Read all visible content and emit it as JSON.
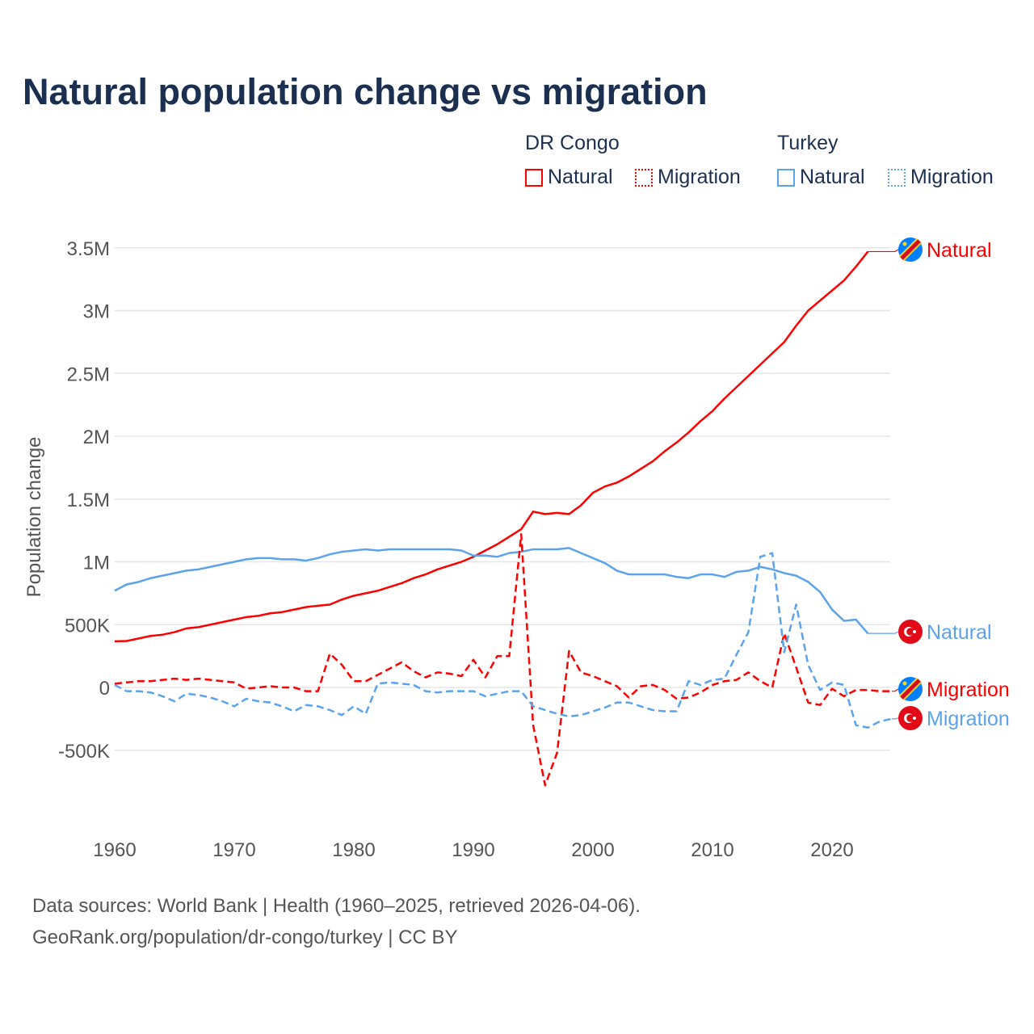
{
  "chart_data": {
    "type": "line",
    "title": "Natural population change vs migration",
    "xlabel": "",
    "ylabel": "Population change",
    "xlim": [
      1960,
      2025
    ],
    "ylim": [
      -1000000,
      3500000
    ],
    "x_ticks": [
      "1960",
      "1970",
      "1980",
      "1990",
      "2000",
      "2010",
      "2020"
    ],
    "y_ticks": [
      {
        "v": 3500000,
        "l": "3.5M"
      },
      {
        "v": 3000000,
        "l": "3M"
      },
      {
        "v": 2500000,
        "l": "2.5M"
      },
      {
        "v": 2000000,
        "l": "2M"
      },
      {
        "v": 1500000,
        "l": "1.5M"
      },
      {
        "v": 1000000,
        "l": "1M"
      },
      {
        "v": 500000,
        "l": "500K"
      },
      {
        "v": 0,
        "l": "0"
      },
      {
        "v": -500000,
        "l": "-500K"
      }
    ],
    "grid": true,
    "legend": {
      "groups": [
        {
          "name": "DR Congo",
          "items": [
            "Natural",
            "Migration"
          ]
        },
        {
          "name": "Turkey",
          "items": [
            "Natural",
            "Migration"
          ]
        }
      ],
      "placement": "top-right"
    },
    "colors": {
      "dr_congo": "#ff0000",
      "turkey": "#5ba3ea"
    },
    "series": [
      {
        "name": "DR Congo Natural",
        "country": "DR Congo",
        "kind": "Natural",
        "dashed": false,
        "color": "#ff0000",
        "label": "Natural",
        "start": 1960,
        "values": [
          0.367,
          0.37,
          0.39,
          0.41,
          0.42,
          0.44,
          0.47,
          0.48,
          0.5,
          0.52,
          0.54,
          0.56,
          0.57,
          0.59,
          0.6,
          0.62,
          0.64,
          0.65,
          0.66,
          0.7,
          0.73,
          0.75,
          0.77,
          0.8,
          0.83,
          0.87,
          0.9,
          0.94,
          0.97,
          1.0,
          1.04,
          1.09,
          1.14,
          1.2,
          1.26,
          1.4,
          1.38,
          1.39,
          1.38,
          1.45,
          1.55,
          1.6,
          1.63,
          1.68,
          1.74,
          1.8,
          1.88,
          1.95,
          2.03,
          2.12,
          2.2,
          2.3,
          2.39,
          2.48,
          2.57,
          2.66,
          2.75,
          2.88,
          3.0,
          3.08,
          3.16,
          3.24,
          3.35,
          3.47
        ]
      },
      {
        "name": "Turkey Natural",
        "country": "Turkey",
        "kind": "Natural",
        "dashed": false,
        "color": "#5ba3ea",
        "label": "Natural",
        "start": 1960,
        "values": [
          0.77,
          0.82,
          0.84,
          0.87,
          0.89,
          0.91,
          0.93,
          0.94,
          0.96,
          0.98,
          1.0,
          1.02,
          1.03,
          1.03,
          1.02,
          1.02,
          1.01,
          1.03,
          1.06,
          1.08,
          1.09,
          1.1,
          1.09,
          1.1,
          1.1,
          1.1,
          1.1,
          1.1,
          1.1,
          1.09,
          1.05,
          1.05,
          1.04,
          1.07,
          1.08,
          1.1,
          1.1,
          1.1,
          1.11,
          1.07,
          1.03,
          0.99,
          0.93,
          0.9,
          0.9,
          0.9,
          0.9,
          0.88,
          0.87,
          0.9,
          0.9,
          0.88,
          0.92,
          0.93,
          0.96,
          0.94,
          0.91,
          0.89,
          0.84,
          0.76,
          0.62,
          0.53,
          0.54,
          0.43
        ]
      },
      {
        "name": "DR Congo Migration",
        "country": "DR Congo",
        "kind": "Migration",
        "dashed": true,
        "color": "#ff0000",
        "label": "Migration",
        "start": 1960,
        "values": [
          0.03,
          0.04,
          0.05,
          0.05,
          0.06,
          0.07,
          0.06,
          0.07,
          0.06,
          0.05,
          0.04,
          -0.01,
          0.0,
          0.01,
          0.0,
          0.0,
          -0.03,
          -0.03,
          0.27,
          0.18,
          0.05,
          0.05,
          0.1,
          0.15,
          0.2,
          0.13,
          0.08,
          0.12,
          0.11,
          0.09,
          0.22,
          0.08,
          0.25,
          0.25,
          1.22,
          -0.3,
          -0.78,
          -0.52,
          0.29,
          0.12,
          0.09,
          0.05,
          0.01,
          -0.08,
          0.01,
          0.02,
          -0.02,
          -0.09,
          -0.08,
          -0.04,
          0.02,
          0.05,
          0.06,
          0.12,
          0.05,
          0.0,
          0.43,
          0.16,
          -0.12,
          -0.14,
          -0.01,
          -0.07,
          -0.02,
          -0.02,
          -0.03,
          -0.03
        ]
      },
      {
        "name": "Turkey Migration",
        "country": "Turkey",
        "kind": "Migration",
        "dashed": true,
        "color": "#5ba3ea",
        "label": "Migration",
        "start": 1960,
        "values": [
          0.02,
          -0.03,
          -0.03,
          -0.04,
          -0.07,
          -0.11,
          -0.05,
          -0.06,
          -0.08,
          -0.11,
          -0.15,
          -0.09,
          -0.11,
          -0.12,
          -0.15,
          -0.19,
          -0.14,
          -0.15,
          -0.18,
          -0.22,
          -0.15,
          -0.21,
          0.03,
          0.04,
          0.03,
          0.02,
          -0.03,
          -0.04,
          -0.03,
          -0.03,
          -0.03,
          -0.07,
          -0.05,
          -0.03,
          -0.03,
          -0.15,
          -0.18,
          -0.21,
          -0.23,
          -0.22,
          -0.19,
          -0.16,
          -0.12,
          -0.12,
          -0.15,
          -0.18,
          -0.19,
          -0.19,
          0.05,
          0.02,
          0.06,
          0.07,
          0.26,
          0.44,
          1.04,
          1.07,
          0.28,
          0.66,
          0.18,
          -0.02,
          0.04,
          0.02,
          -0.3,
          -0.32,
          -0.27,
          -0.25
        ]
      }
    ],
    "value_unit": "millions"
  },
  "footer": {
    "line1": "Data sources: World Bank | Health (1960–2025, retrieved 2026-04-06).",
    "line2": "GeoRank.org/population/dr-congo/turkey | CC BY"
  }
}
